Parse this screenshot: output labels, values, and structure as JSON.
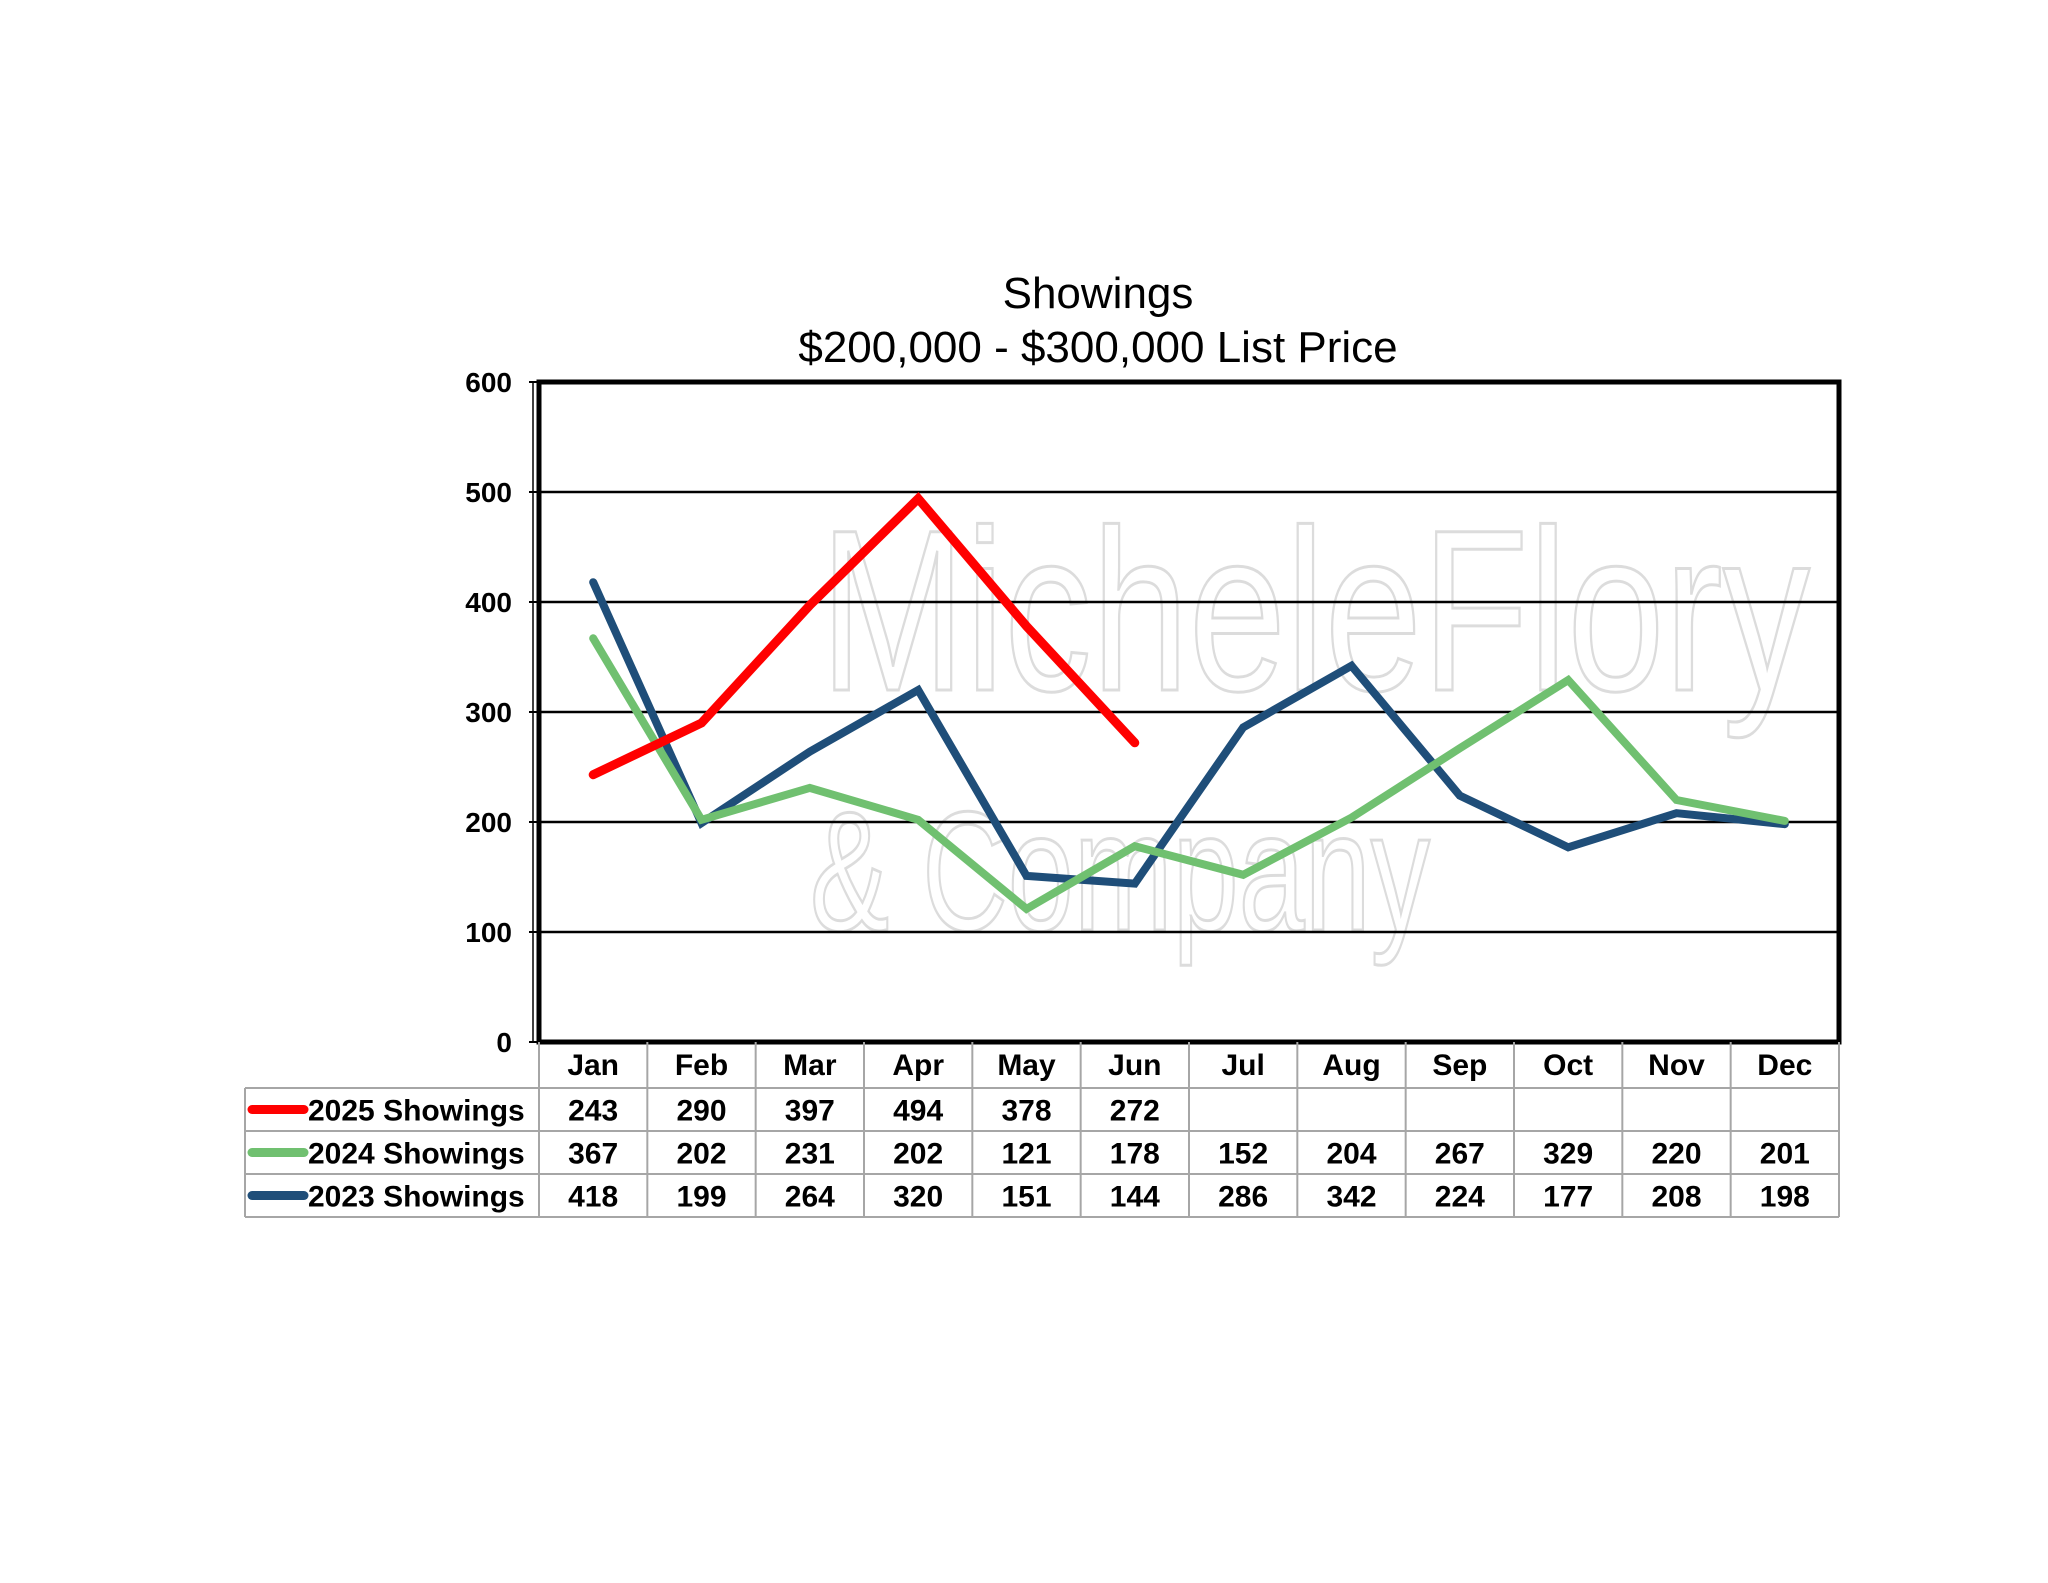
{
  "chart_data": {
    "type": "line",
    "title": "Showings",
    "subtitle": "$200,000 - $300,000 List Price",
    "categories": [
      "Jan",
      "Feb",
      "Mar",
      "Apr",
      "May",
      "Jun",
      "Jul",
      "Aug",
      "Sep",
      "Oct",
      "Nov",
      "Dec"
    ],
    "series": [
      {
        "name": "2025 Showings",
        "color": "#ff0000",
        "values": [
          243,
          290,
          397,
          494,
          378,
          272,
          null,
          null,
          null,
          null,
          null,
          null
        ]
      },
      {
        "name": "2024 Showings",
        "color": "#70c070",
        "values": [
          367,
          202,
          231,
          202,
          121,
          178,
          152,
          204,
          267,
          329,
          220,
          201
        ]
      },
      {
        "name": "2023 Showings",
        "color": "#1f4e79",
        "values": [
          418,
          199,
          264,
          320,
          151,
          144,
          286,
          342,
          224,
          177,
          208,
          198
        ]
      }
    ],
    "ylim": [
      0,
      600
    ],
    "yticks": [
      0,
      100,
      200,
      300,
      400,
      500,
      600
    ],
    "grid": true,
    "legend": "data-table"
  },
  "watermark": {
    "line1": "MicheleFlory",
    "line2": "& Company"
  }
}
